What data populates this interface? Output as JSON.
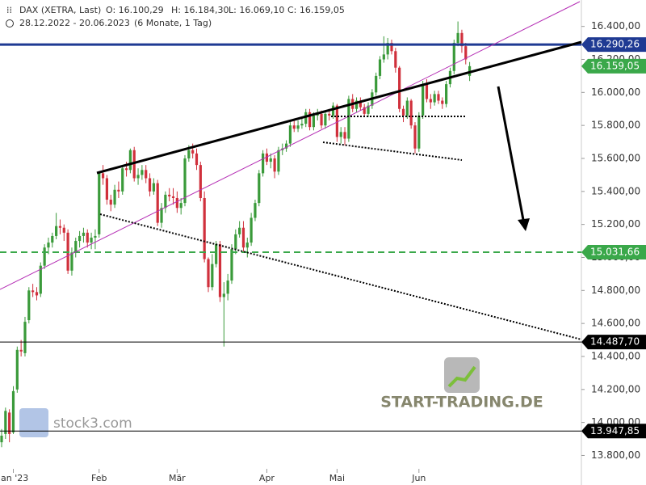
{
  "header": {
    "symbol": "DAX (XETRA, Last)",
    "open": "O: 16.100,29",
    "high": "H: 16.184,30",
    "low": "L: 16.069,10",
    "close": "C: 16.159,05",
    "range": "28.12.2022 - 20.06.2023",
    "period": "(6 Monate, 1 Tag)"
  },
  "watermarks": {
    "left": "stock3.com",
    "right": "START-TRADING.DE"
  },
  "chart_data": {
    "type": "candlestick",
    "up_color": "#3a9a3a",
    "down_color": "#d0303c",
    "ylim": [
      13670,
      16560
    ],
    "yticks": [
      {
        "value": 13800,
        "label": "13.800,00"
      },
      {
        "value": 14000,
        "label": "14.000,00"
      },
      {
        "value": 14200,
        "label": "14.200,00"
      },
      {
        "value": 14400,
        "label": "14.400,00"
      },
      {
        "value": 14600,
        "label": "14.600,00"
      },
      {
        "value": 14800,
        "label": "14.800,00"
      },
      {
        "value": 15000,
        "label": "15.000,00"
      },
      {
        "value": 15200,
        "label": "15.200,00"
      },
      {
        "value": 15400,
        "label": "15.400,00"
      },
      {
        "value": 15600,
        "label": "15.600,00"
      },
      {
        "value": 15800,
        "label": "15.800,00"
      },
      {
        "value": 16000,
        "label": "16.000,00"
      },
      {
        "value": 16200,
        "label": "16.200,00"
      },
      {
        "value": 16400,
        "label": "16.400,00"
      }
    ],
    "levels": [
      {
        "value": 16290.26,
        "label": "16.290,26",
        "color": "#1f3a93",
        "style": "solid",
        "width": 3
      },
      {
        "value": 16159.05,
        "label": "16.159,05",
        "color": "#3aa84a",
        "style": "none",
        "width": 0
      },
      {
        "value": 15031.66,
        "label": "15.031,66",
        "color": "#3aa84a",
        "style": "dashed",
        "width": 2
      },
      {
        "value": 14487.7,
        "label": "14.487,70",
        "color": "#000000",
        "style": "solid",
        "width": 1
      },
      {
        "value": 13947.85,
        "label": "13.947,85",
        "color": "#000000",
        "style": "solid",
        "width": 1
      }
    ],
    "categories": [
      null,
      null,
      null,
      "Jan '23",
      null,
      null,
      null,
      null,
      null,
      null,
      null,
      null,
      null,
      null,
      null,
      null,
      null,
      null,
      null,
      null,
      null,
      null,
      null,
      null,
      null,
      "Feb",
      null,
      null,
      null,
      null,
      null,
      null,
      null,
      null,
      null,
      null,
      null,
      null,
      null,
      null,
      null,
      null,
      null,
      null,
      null,
      "Mär",
      null,
      null,
      null,
      null,
      null,
      null,
      null,
      null,
      null,
      null,
      null,
      null,
      null,
      null,
      null,
      null,
      null,
      null,
      null,
      null,
      null,
      null,
      "Apr",
      null,
      null,
      null,
      null,
      null,
      null,
      null,
      null,
      null,
      null,
      null,
      null,
      null,
      null,
      null,
      null,
      null,
      "Mai",
      null,
      null,
      null,
      null,
      null,
      null,
      null,
      null,
      null,
      null,
      null,
      null,
      null,
      null,
      null,
      null,
      null,
      null,
      null,
      null,
      "Jun",
      null,
      null,
      null,
      null,
      null,
      null,
      null,
      null,
      null,
      null,
      null,
      null,
      null
    ],
    "ohlc": [
      [
        13880,
        13960,
        13850,
        13920
      ],
      [
        13930,
        14090,
        13900,
        14070
      ],
      [
        14060,
        14080,
        13880,
        13930
      ],
      [
        13940,
        14220,
        13930,
        14190
      ],
      [
        14200,
        14460,
        14180,
        14440
      ],
      [
        14440,
        14500,
        14400,
        14430
      ],
      [
        14420,
        14640,
        14400,
        14610
      ],
      [
        14620,
        14820,
        14600,
        14800
      ],
      [
        14800,
        14840,
        14760,
        14790
      ],
      [
        14790,
        14820,
        14740,
        14770
      ],
      [
        14780,
        14970,
        14760,
        14950
      ],
      [
        14950,
        15080,
        14930,
        15060
      ],
      [
        15060,
        15120,
        15020,
        15090
      ],
      [
        15090,
        15150,
        15060,
        15130
      ],
      [
        15130,
        15270,
        15110,
        15190
      ],
      [
        15190,
        15230,
        15140,
        15180
      ],
      [
        15180,
        15200,
        15100,
        15150
      ],
      [
        15150,
        15170,
        14900,
        14920
      ],
      [
        14920,
        15060,
        14890,
        15030
      ],
      [
        15030,
        15120,
        15000,
        15100
      ],
      [
        15100,
        15160,
        15060,
        15130
      ],
      [
        15130,
        15180,
        15090,
        15150
      ],
      [
        15150,
        15170,
        15060,
        15090
      ],
      [
        15090,
        15150,
        15050,
        15120
      ],
      [
        15120,
        15170,
        15050,
        15130
      ],
      [
        15140,
        15520,
        15120,
        15510
      ],
      [
        15510,
        15560,
        15440,
        15480
      ],
      [
        15480,
        15500,
        15320,
        15350
      ],
      [
        15350,
        15380,
        15280,
        15320
      ],
      [
        15320,
        15440,
        15300,
        15410
      ],
      [
        15410,
        15460,
        15360,
        15400
      ],
      [
        15400,
        15560,
        15380,
        15540
      ],
      [
        15540,
        15580,
        15490,
        15530
      ],
      [
        15530,
        15660,
        15510,
        15650
      ],
      [
        15650,
        15670,
        15460,
        15480
      ],
      [
        15480,
        15540,
        15440,
        15500
      ],
      [
        15500,
        15560,
        15470,
        15530
      ],
      [
        15530,
        15560,
        15450,
        15480
      ],
      [
        15480,
        15510,
        15370,
        15400
      ],
      [
        15400,
        15480,
        15380,
        15450
      ],
      [
        15450,
        15470,
        15190,
        15210
      ],
      [
        15210,
        15330,
        15180,
        15300
      ],
      [
        15300,
        15400,
        15270,
        15380
      ],
      [
        15380,
        15420,
        15340,
        15370
      ],
      [
        15370,
        15420,
        15320,
        15360
      ],
      [
        15360,
        15400,
        15270,
        15300
      ],
      [
        15300,
        15360,
        15260,
        15330
      ],
      [
        15330,
        15620,
        15310,
        15600
      ],
      [
        15600,
        15680,
        15580,
        15650
      ],
      [
        15650,
        15690,
        15600,
        15630
      ],
      [
        15630,
        15660,
        15530,
        15560
      ],
      [
        15560,
        15580,
        15340,
        15360
      ],
      [
        15360,
        15400,
        14970,
        14990
      ],
      [
        14990,
        15000,
        14790,
        14820
      ],
      [
        14820,
        15020,
        14800,
        14960
      ],
      [
        14960,
        15100,
        14940,
        15080
      ],
      [
        15080,
        15100,
        14730,
        14760
      ],
      [
        14760,
        14850,
        14460,
        14780
      ],
      [
        14780,
        14900,
        14740,
        14860
      ],
      [
        14860,
        15080,
        14840,
        15050
      ],
      [
        15050,
        15170,
        15020,
        15140
      ],
      [
        15140,
        15220,
        15120,
        15180
      ],
      [
        15180,
        15220,
        15030,
        15060
      ],
      [
        15060,
        15120,
        15000,
        15090
      ],
      [
        15090,
        15270,
        15070,
        15240
      ],
      [
        15240,
        15350,
        15220,
        15330
      ],
      [
        15330,
        15530,
        15310,
        15510
      ],
      [
        15510,
        15650,
        15490,
        15630
      ],
      [
        15630,
        15660,
        15560,
        15580
      ],
      [
        15580,
        15630,
        15540,
        15600
      ],
      [
        15600,
        15620,
        15480,
        15520
      ],
      [
        15520,
        15670,
        15500,
        15650
      ],
      [
        15650,
        15690,
        15620,
        15660
      ],
      [
        15660,
        15710,
        15640,
        15690
      ],
      [
        15690,
        15820,
        15670,
        15800
      ],
      [
        15800,
        15830,
        15760,
        15780
      ],
      [
        15780,
        15830,
        15760,
        15800
      ],
      [
        15800,
        15840,
        15780,
        15810
      ],
      [
        15810,
        15900,
        15790,
        15880
      ],
      [
        15880,
        15900,
        15770,
        15790
      ],
      [
        15790,
        15880,
        15770,
        15860
      ],
      [
        15860,
        15900,
        15830,
        15870
      ],
      [
        15870,
        15890,
        15780,
        15800
      ],
      [
        15800,
        15890,
        15780,
        15870
      ],
      [
        15870,
        15900,
        15830,
        15860
      ],
      [
        15860,
        15940,
        15840,
        15920
      ],
      [
        15920,
        15930,
        15700,
        15730
      ],
      [
        15730,
        15790,
        15690,
        15760
      ],
      [
        15760,
        15790,
        15680,
        15720
      ],
      [
        15720,
        15980,
        15700,
        15960
      ],
      [
        15960,
        15990,
        15880,
        15900
      ],
      [
        15900,
        15970,
        15880,
        15950
      ],
      [
        15950,
        15970,
        15890,
        15910
      ],
      [
        15910,
        15930,
        15850,
        15870
      ],
      [
        15870,
        15940,
        15850,
        15920
      ],
      [
        15920,
        16020,
        15900,
        16000
      ],
      [
        16000,
        16120,
        15980,
        16100
      ],
      [
        16100,
        16220,
        16080,
        16200
      ],
      [
        16200,
        16340,
        16180,
        16230
      ],
      [
        16230,
        16330,
        16200,
        16300
      ],
      [
        16300,
        16320,
        16230,
        16250
      ],
      [
        16250,
        16270,
        16120,
        16150
      ],
      [
        16150,
        16160,
        15880,
        15900
      ],
      [
        15900,
        15920,
        15820,
        15860
      ],
      [
        15860,
        15970,
        15840,
        15950
      ],
      [
        15950,
        15960,
        15780,
        15800
      ],
      [
        15800,
        15820,
        15630,
        15660
      ],
      [
        15660,
        15880,
        15640,
        15860
      ],
      [
        15860,
        16070,
        15840,
        16050
      ],
      [
        16050,
        16080,
        15940,
        15960
      ],
      [
        15960,
        15990,
        15900,
        15940
      ],
      [
        15940,
        16010,
        15920,
        15990
      ],
      [
        15990,
        16010,
        15930,
        15950
      ],
      [
        15950,
        15970,
        15900,
        15930
      ],
      [
        15930,
        16070,
        15910,
        16050
      ],
      [
        16050,
        16150,
        16030,
        16130
      ],
      [
        16130,
        16320,
        16110,
        16300
      ],
      [
        16300,
        16430,
        16280,
        16360
      ],
      [
        16360,
        16380,
        16240,
        16280
      ],
      [
        16280,
        16300,
        16170,
        16200
      ],
      [
        16100.29,
        16184.3,
        16069.1,
        16159.05
      ]
    ]
  }
}
